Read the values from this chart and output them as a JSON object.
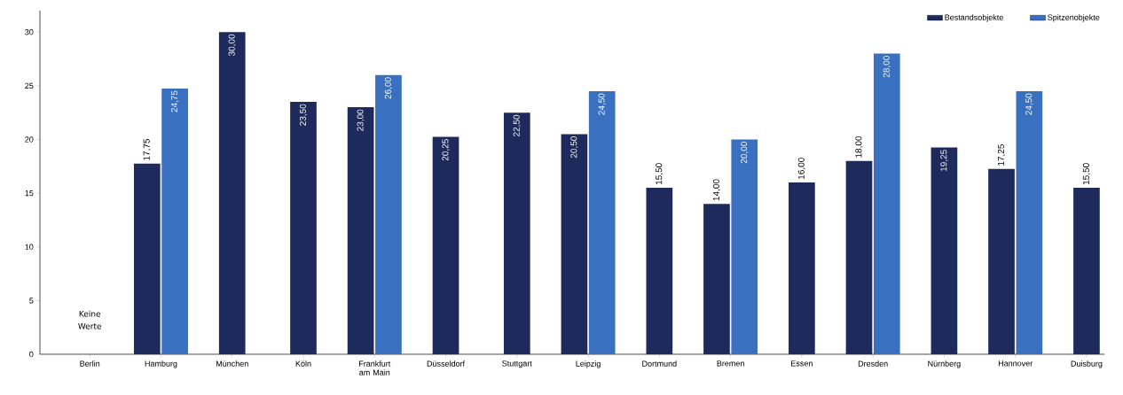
{
  "chart_data": {
    "type": "bar",
    "categories": [
      "Berlin",
      "Hamburg",
      "München",
      "Köln",
      "Frankfurt am Main",
      "Düsseldorf",
      "Stuttgart",
      "Leipzig",
      "Dortmund",
      "Bremen",
      "Essen",
      "Dresden",
      "Nürnberg",
      "Hannover",
      "Duisburg"
    ],
    "series": [
      {
        "name": "Bestandsobjekte",
        "color": "#1f2a5c",
        "values": [
          null,
          17.75,
          30,
          23.5,
          23,
          20.25,
          22.5,
          20.5,
          15.5,
          14,
          16,
          18,
          19.25,
          17.25,
          15.5
        ],
        "value_labels": [
          null,
          "17,75",
          "30,00",
          "23,50",
          "23,00",
          "20,25",
          "22,50",
          "20,50",
          "15,50",
          "14,00",
          "16,00",
          "18,00",
          "19,25",
          "17,25",
          "15,50"
        ]
      },
      {
        "name": "Spitzenobjekte",
        "color": "#3a70c0",
        "values": [
          null,
          24.75,
          null,
          null,
          26,
          null,
          null,
          24.5,
          null,
          20,
          null,
          28,
          null,
          24.5,
          null
        ],
        "value_labels": [
          null,
          "24,75",
          null,
          null,
          "26,00",
          null,
          null,
          "24,50",
          null,
          "20,00",
          null,
          "28,00",
          null,
          "24,50",
          null
        ]
      }
    ],
    "ylim": [
      0,
      32
    ],
    "yticks": [
      0,
      5,
      10,
      15,
      20,
      25,
      30
    ],
    "legend": "top right",
    "annotations": [
      "Keine Werte"
    ]
  }
}
